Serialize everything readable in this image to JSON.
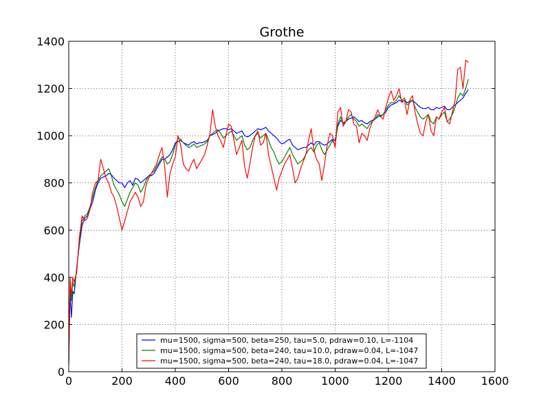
{
  "chart_data": {
    "type": "line",
    "title": "Grothe",
    "xlabel": "",
    "ylabel": "",
    "xlim": [
      0,
      1600
    ],
    "ylim": [
      0,
      1400
    ],
    "xticks": [
      0,
      200,
      400,
      600,
      800,
      1000,
      1200,
      1400,
      1600
    ],
    "yticks": [
      0,
      200,
      400,
      600,
      800,
      1000,
      1200,
      1400
    ],
    "grid": true,
    "legend_position": "bottom-center",
    "series": [
      {
        "name": "mu=1500, sigma=500, beta=250, tau=5.0, pdraw=0.10, L=-1104",
        "color": "#0000ff",
        "x": [
          0,
          5,
          10,
          15,
          20,
          30,
          40,
          50,
          60,
          70,
          80,
          90,
          100,
          110,
          120,
          130,
          140,
          150,
          160,
          170,
          180,
          190,
          200,
          210,
          220,
          230,
          240,
          250,
          260,
          270,
          280,
          290,
          300,
          310,
          320,
          330,
          340,
          350,
          360,
          370,
          380,
          390,
          400,
          410,
          420,
          430,
          440,
          450,
          460,
          470,
          480,
          490,
          500,
          510,
          520,
          530,
          540,
          550,
          560,
          570,
          580,
          590,
          600,
          610,
          620,
          630,
          640,
          650,
          660,
          670,
          680,
          690,
          700,
          710,
          720,
          730,
          740,
          750,
          760,
          770,
          780,
          790,
          800,
          810,
          820,
          830,
          840,
          850,
          860,
          870,
          880,
          890,
          900,
          910,
          920,
          930,
          940,
          950,
          960,
          970,
          980,
          990,
          1000,
          1010,
          1020,
          1030,
          1040,
          1050,
          1060,
          1070,
          1080,
          1090,
          1100,
          1110,
          1120,
          1130,
          1140,
          1150,
          1160,
          1170,
          1180,
          1190,
          1200,
          1210,
          1220,
          1230,
          1240,
          1250,
          1260,
          1270,
          1280,
          1290,
          1300,
          1310,
          1320,
          1330,
          1340,
          1350,
          1360,
          1370,
          1380,
          1390,
          1400,
          1410,
          1420,
          1430,
          1440,
          1450,
          1460,
          1470,
          1480,
          1490,
          1500
        ],
        "y": [
          30,
          330,
          230,
          340,
          330,
          440,
          540,
          620,
          650,
          660,
          690,
          720,
          770,
          800,
          820,
          825,
          830,
          840,
          835,
          820,
          810,
          800,
          800,
          780,
          800,
          810,
          790,
          820,
          815,
          800,
          810,
          820,
          830,
          830,
          840,
          860,
          880,
          900,
          900,
          910,
          920,
          940,
          970,
          975,
          980,
          970,
          965,
          960,
          970,
          975,
          965,
          970,
          970,
          975,
          980,
          1000,
          1005,
          1010,
          1020,
          1025,
          1030,
          1030,
          1025,
          1030,
          1020,
          1010,
          1015,
          1020,
          1000,
          995,
          1000,
          1010,
          1020,
          1030,
          1025,
          1030,
          1035,
          1020,
          1010,
          1000,
          990,
          975,
          965,
          970,
          980,
          985,
          960,
          950,
          940,
          945,
          950,
          950,
          960,
          970,
          960,
          975,
          975,
          965,
          960,
          965,
          975,
          985,
          980,
          1040,
          1065,
          1055,
          1060,
          1070,
          1075,
          1080,
          1070,
          1060,
          1065,
          1055,
          1050,
          1060,
          1065,
          1070,
          1080,
          1085,
          1090,
          1100,
          1120,
          1130,
          1135,
          1140,
          1150,
          1145,
          1150,
          1140,
          1145,
          1150,
          1140,
          1130,
          1120,
          1115,
          1115,
          1120,
          1110,
          1110,
          1120,
          1115,
          1120,
          1125,
          1110,
          1110,
          1120,
          1130,
          1140,
          1150,
          1160,
          1180,
          1195
        ]
      },
      {
        "name": "mu=1500, sigma=500, beta=240, tau=10.0, pdraw=0.04, L=-1047",
        "color": "#008000",
        "x": [
          0,
          5,
          10,
          15,
          20,
          30,
          40,
          50,
          60,
          70,
          80,
          90,
          100,
          110,
          120,
          130,
          140,
          150,
          160,
          170,
          180,
          190,
          200,
          210,
          220,
          230,
          240,
          250,
          260,
          270,
          280,
          290,
          300,
          310,
          320,
          330,
          340,
          350,
          360,
          370,
          380,
          390,
          400,
          410,
          420,
          430,
          440,
          450,
          460,
          470,
          480,
          490,
          500,
          510,
          520,
          530,
          540,
          550,
          560,
          570,
          580,
          590,
          600,
          610,
          620,
          630,
          640,
          650,
          660,
          670,
          680,
          690,
          700,
          710,
          720,
          730,
          740,
          750,
          760,
          770,
          780,
          790,
          800,
          810,
          820,
          830,
          840,
          850,
          860,
          870,
          880,
          890,
          900,
          910,
          920,
          930,
          940,
          950,
          960,
          970,
          980,
          990,
          1000,
          1010,
          1020,
          1030,
          1040,
          1050,
          1060,
          1070,
          1080,
          1090,
          1100,
          1110,
          1120,
          1130,
          1140,
          1150,
          1160,
          1170,
          1180,
          1190,
          1200,
          1210,
          1220,
          1230,
          1240,
          1250,
          1260,
          1270,
          1280,
          1290,
          1300,
          1310,
          1320,
          1330,
          1340,
          1350,
          1360,
          1370,
          1380,
          1390,
          1400,
          1410,
          1420,
          1430,
          1440,
          1450,
          1460,
          1470,
          1480,
          1490,
          1500
        ],
        "y": [
          40,
          360,
          300,
          380,
          360,
          430,
          560,
          640,
          660,
          670,
          700,
          740,
          780,
          810,
          830,
          840,
          850,
          860,
          830,
          790,
          770,
          750,
          720,
          700,
          730,
          760,
          780,
          800,
          790,
          760,
          780,
          810,
          830,
          840,
          850,
          870,
          890,
          910,
          900,
          880,
          890,
          920,
          960,
          990,
          985,
          970,
          960,
          950,
          955,
          965,
          950,
          955,
          960,
          965,
          975,
          1000,
          1010,
          1020,
          1025,
          1010,
          990,
          1000,
          1010,
          1020,
          1000,
          980,
          990,
          1000,
          960,
          940,
          950,
          980,
          1000,
          1010,
          990,
          1000,
          1010,
          980,
          950,
          930,
          900,
          880,
          890,
          910,
          930,
          950,
          920,
          900,
          880,
          890,
          900,
          920,
          940,
          950,
          930,
          960,
          970,
          940,
          920,
          940,
          960,
          980,
          960,
          1050,
          1080,
          1050,
          1060,
          1080,
          1090,
          1070,
          1060,
          1040,
          1050,
          1040,
          1030,
          1050,
          1060,
          1070,
          1090,
          1080,
          1090,
          1110,
          1130,
          1140,
          1140,
          1150,
          1170,
          1150,
          1160,
          1130,
          1140,
          1150,
          1120,
          1100,
          1080,
          1070,
          1080,
          1090,
          1060,
          1050,
          1080,
          1070,
          1090,
          1100,
          1060,
          1070,
          1090,
          1120,
          1160,
          1180,
          1170,
          1200,
          1240
        ]
      },
      {
        "name": "mu=1500, sigma=500, beta=240, tau=18.0, pdraw=0.04, L=-1047",
        "color": "#ff0000",
        "x": [
          0,
          5,
          10,
          15,
          20,
          30,
          40,
          50,
          60,
          70,
          80,
          90,
          100,
          110,
          120,
          130,
          140,
          150,
          160,
          170,
          180,
          190,
          200,
          210,
          220,
          230,
          240,
          250,
          260,
          270,
          280,
          290,
          300,
          310,
          320,
          330,
          340,
          350,
          360,
          370,
          380,
          390,
          400,
          410,
          420,
          430,
          440,
          450,
          460,
          470,
          480,
          490,
          500,
          510,
          520,
          530,
          540,
          550,
          560,
          570,
          580,
          590,
          600,
          610,
          620,
          630,
          640,
          650,
          660,
          670,
          680,
          690,
          700,
          710,
          720,
          730,
          740,
          750,
          760,
          770,
          780,
          790,
          800,
          810,
          820,
          830,
          840,
          850,
          860,
          870,
          880,
          890,
          900,
          910,
          920,
          930,
          940,
          950,
          960,
          970,
          980,
          990,
          1000,
          1010,
          1020,
          1030,
          1040,
          1050,
          1060,
          1070,
          1080,
          1090,
          1100,
          1110,
          1120,
          1130,
          1140,
          1150,
          1160,
          1170,
          1180,
          1190,
          1200,
          1210,
          1220,
          1230,
          1240,
          1250,
          1260,
          1270,
          1280,
          1290,
          1300,
          1310,
          1320,
          1330,
          1340,
          1350,
          1360,
          1370,
          1380,
          1390,
          1400,
          1410,
          1420,
          1430,
          1440,
          1450,
          1460,
          1470,
          1480,
          1490,
          1500
        ],
        "y": [
          50,
          400,
          320,
          400,
          380,
          420,
          570,
          660,
          640,
          650,
          690,
          760,
          800,
          810,
          900,
          860,
          820,
          800,
          760,
          740,
          700,
          650,
          600,
          640,
          680,
          720,
          740,
          760,
          740,
          700,
          720,
          790,
          820,
          840,
          860,
          880,
          920,
          950,
          870,
          740,
          840,
          880,
          910,
          1000,
          960,
          880,
          860,
          850,
          880,
          900,
          860,
          880,
          900,
          920,
          960,
          1010,
          1110,
          1040,
          1000,
          980,
          950,
          1000,
          1050,
          1040,
          980,
          920,
          950,
          980,
          870,
          820,
          880,
          950,
          1000,
          1020,
          960,
          970,
          1010,
          920,
          870,
          820,
          770,
          820,
          850,
          880,
          900,
          920,
          860,
          800,
          820,
          860,
          890,
          920,
          980,
          1030,
          940,
          900,
          880,
          810,
          880,
          960,
          1010,
          1000,
          950,
          1100,
          1120,
          1040,
          1060,
          1110,
          1100,
          1050,
          1040,
          970,
          1010,
          1000,
          980,
          1030,
          1060,
          1080,
          1110,
          1080,
          1070,
          1120,
          1160,
          1190,
          1150,
          1170,
          1200,
          1140,
          1150,
          1090,
          1150,
          1170,
          1100,
          1050,
          1010,
          1000,
          1060,
          1090,
          1020,
          1000,
          1080,
          1070,
          1100,
          1120,
          1060,
          1050,
          1100,
          1150,
          1280,
          1290,
          1200,
          1320,
          1310
        ]
      }
    ]
  }
}
